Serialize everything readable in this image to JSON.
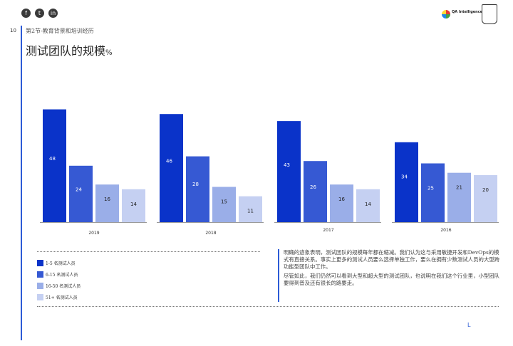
{
  "page_number": "10",
  "section_label": "第2节-教育背景和培训经历",
  "title": "测试团队的规模",
  "title_suffix": "%",
  "social_icons": [
    "facebook-icon",
    "twitter-icon",
    "linkedin-icon"
  ],
  "logo_text": "QA Intelligence",
  "colors": {
    "accent": "#2d5bd6",
    "series": [
      "#0a33c9",
      "#3659d3",
      "#9aaee8",
      "#c5d0f2"
    ]
  },
  "chart_data": {
    "type": "bar",
    "categories": [
      "2019",
      "2018",
      "2017",
      "2016"
    ],
    "series": [
      {
        "name": "1-5 名测试人员",
        "values": [
          48,
          46,
          43,
          34
        ]
      },
      {
        "name": "6-15 名测试人员",
        "values": [
          24,
          28,
          26,
          25
        ]
      },
      {
        "name": "16-50 名测试人员",
        "values": [
          16,
          15,
          16,
          21
        ]
      },
      {
        "name": "51+ 名测试人员",
        "values": [
          14,
          11,
          14,
          20
        ]
      }
    ],
    "ylim": [
      0,
      50
    ],
    "grid": false,
    "legend": "bottom-left"
  },
  "commentary": [
    "明确的迹象表明，测试团队的规模每年都在缩减。我们认为这与采用敏捷开发和DevOps的模式有直接关系。事实上更多的测试人员要么选择单独工作，要么在拥有少数测试人员的大型跨功能型团队中工作。",
    "尽管如此，我们仍然可以看到大型和超大型的测试团队，也说明在我们这个行业里，小型团队要得到普及还有很长的路要走。"
  ],
  "corner_mark": "L"
}
